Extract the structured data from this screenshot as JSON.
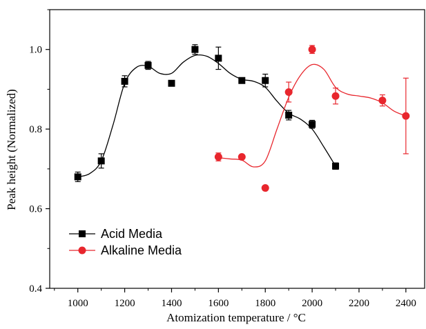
{
  "chart_data": {
    "type": "scatter",
    "xlabel": "Atomization temperature / °C",
    "ylabel": "Peak height (Normalized)",
    "xlim": [
      880,
      2480
    ],
    "ylim": [
      0.4,
      1.1
    ],
    "xticks": [
      1000,
      1200,
      1400,
      1600,
      1800,
      2000,
      2200,
      2400
    ],
    "yticks": [
      0.4,
      0.6,
      0.8,
      1.0
    ],
    "xtick_labels": [
      "1000",
      "1200",
      "1400",
      "1600",
      "1800",
      "2000",
      "2200",
      "2400"
    ],
    "ytick_labels": [
      "0.4",
      "0.6",
      "0.8",
      "1.0"
    ],
    "legend_position": "bottom-left",
    "grid": false,
    "series": [
      {
        "name": "Acid Media",
        "color": "#000000",
        "marker": "square",
        "points": [
          {
            "x": 1000,
            "y": 0.68,
            "err": 0.012
          },
          {
            "x": 1100,
            "y": 0.72,
            "err": 0.018
          },
          {
            "x": 1200,
            "y": 0.92,
            "err": 0.014
          },
          {
            "x": 1300,
            "y": 0.96,
            "err": 0.01
          },
          {
            "x": 1400,
            "y": 0.915,
            "err": 0.005
          },
          {
            "x": 1500,
            "y": 1.0,
            "err": 0.012
          },
          {
            "x": 1600,
            "y": 0.978,
            "err": 0.028
          },
          {
            "x": 1700,
            "y": 0.922,
            "err": 0.005
          },
          {
            "x": 1800,
            "y": 0.922,
            "err": 0.016
          },
          {
            "x": 1900,
            "y": 0.835,
            "err": 0.012
          },
          {
            "x": 2000,
            "y": 0.812,
            "err": 0.01
          },
          {
            "x": 2100,
            "y": 0.707,
            "err": 0.008
          }
        ],
        "curve": [
          [
            1000,
            0.68
          ],
          [
            1050,
            0.688
          ],
          [
            1100,
            0.72
          ],
          [
            1150,
            0.81
          ],
          [
            1200,
            0.915
          ],
          [
            1250,
            0.955
          ],
          [
            1300,
            0.958
          ],
          [
            1350,
            0.94
          ],
          [
            1400,
            0.94
          ],
          [
            1450,
            0.968
          ],
          [
            1500,
            0.985
          ],
          [
            1550,
            0.983
          ],
          [
            1600,
            0.965
          ],
          [
            1650,
            0.94
          ],
          [
            1700,
            0.925
          ],
          [
            1750,
            0.92
          ],
          [
            1800,
            0.905
          ],
          [
            1850,
            0.87
          ],
          [
            1900,
            0.84
          ],
          [
            1950,
            0.825
          ],
          [
            2000,
            0.8
          ],
          [
            2050,
            0.755
          ],
          [
            2100,
            0.707
          ]
        ]
      },
      {
        "name": "Alkaline Media",
        "color": "#e8262d",
        "marker": "circle",
        "points": [
          {
            "x": 1600,
            "y": 0.73,
            "err": 0.01
          },
          {
            "x": 1700,
            "y": 0.73,
            "err": 0.005
          },
          {
            "x": 1800,
            "y": 0.652,
            "err": 0.005
          },
          {
            "x": 1900,
            "y": 0.893,
            "err": 0.025
          },
          {
            "x": 2000,
            "y": 1.0,
            "err": 0.01
          },
          {
            "x": 2100,
            "y": 0.883,
            "err": 0.02
          },
          {
            "x": 2300,
            "y": 0.872,
            "err": 0.014
          },
          {
            "x": 2400,
            "y": 0.833,
            "err": 0.095
          }
        ],
        "curve": [
          [
            1600,
            0.728
          ],
          [
            1650,
            0.725
          ],
          [
            1700,
            0.722
          ],
          [
            1750,
            0.705
          ],
          [
            1800,
            0.72
          ],
          [
            1850,
            0.8
          ],
          [
            1900,
            0.88
          ],
          [
            1950,
            0.935
          ],
          [
            2000,
            0.962
          ],
          [
            2050,
            0.95
          ],
          [
            2100,
            0.905
          ],
          [
            2150,
            0.888
          ],
          [
            2200,
            0.883
          ],
          [
            2250,
            0.878
          ],
          [
            2300,
            0.866
          ],
          [
            2350,
            0.845
          ],
          [
            2400,
            0.833
          ]
        ]
      }
    ]
  }
}
